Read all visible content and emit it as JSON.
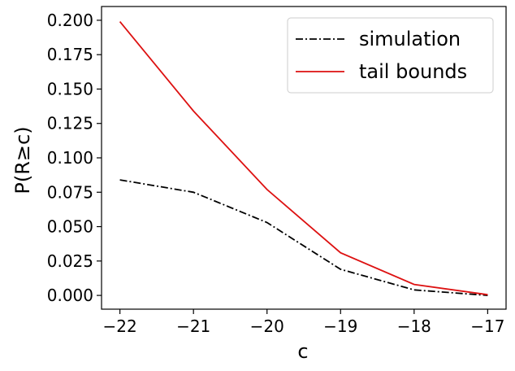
{
  "chart_data": {
    "type": "line",
    "xlabel": "c",
    "ylabel": "P(R≥c)",
    "x": [
      -22,
      -21,
      -20,
      -19,
      -18,
      -17
    ],
    "xlim": [
      -22.25,
      -16.75
    ],
    "ylim": [
      -0.01,
      0.21
    ],
    "xticks": [
      -22,
      -21,
      -20,
      -19,
      -18,
      -17
    ],
    "xtick_labels": [
      "−22",
      "−21",
      "−20",
      "−19",
      "−18",
      "−17"
    ],
    "yticks": [
      0.0,
      0.025,
      0.05,
      0.075,
      0.1,
      0.125,
      0.15,
      0.175,
      0.2
    ],
    "ytick_labels": [
      "0.000",
      "0.025",
      "0.050",
      "0.075",
      "0.100",
      "0.125",
      "0.150",
      "0.175",
      "0.200"
    ],
    "grid": false,
    "legend_position": "top-right",
    "series": [
      {
        "name": "simulation",
        "values": [
          0.084,
          0.075,
          0.053,
          0.019,
          0.004,
          0.0
        ],
        "color": "#000000",
        "style": "dash-dot"
      },
      {
        "name": "tail bounds",
        "values": [
          0.199,
          0.134,
          0.077,
          0.031,
          0.008,
          0.0005
        ],
        "color": "#dd1111",
        "style": "solid"
      }
    ]
  }
}
